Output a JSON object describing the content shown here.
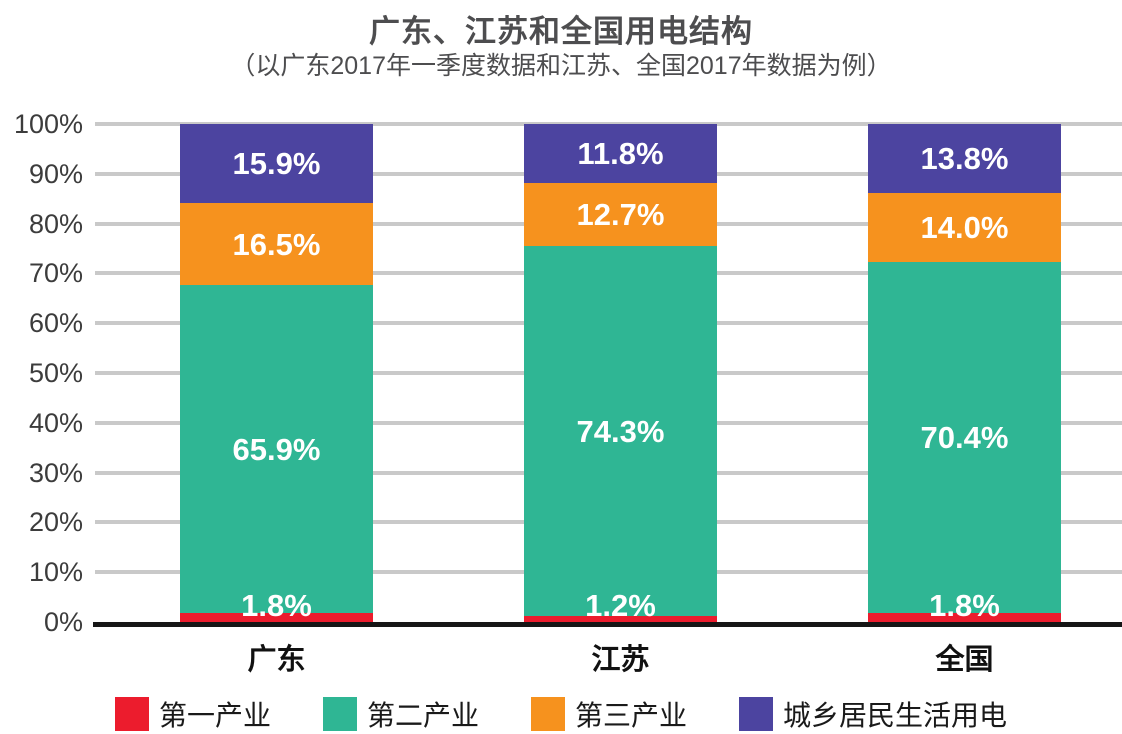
{
  "title": "广东、江苏和全国用电结构",
  "subtitle": "（以广东2017年一季度数据和江苏、全国2017年数据为例）",
  "chart_data": {
    "type": "bar",
    "stacked": true,
    "title": "广东、江苏和全国用电结构",
    "subtitle": "（以广东2017年一季度数据和江苏、全国2017年数据为例）",
    "categories": [
      "广东",
      "江苏",
      "全国"
    ],
    "series": [
      {
        "name": "第一产业",
        "color": "#ec1c2d",
        "values": [
          1.8,
          1.2,
          1.8
        ]
      },
      {
        "name": "第二产业",
        "color": "#2fb694",
        "values": [
          65.9,
          74.3,
          70.4
        ]
      },
      {
        "name": "第三产业",
        "color": "#f6921e",
        "values": [
          16.5,
          12.7,
          14.0
        ]
      },
      {
        "name": "城乡居民生活用电",
        "color": "#4c44a0",
        "values": [
          15.9,
          11.8,
          13.8
        ]
      }
    ],
    "value_labels": [
      [
        "1.8%",
        "65.9%",
        "16.5%",
        "15.9%"
      ],
      [
        "1.2%",
        "74.3%",
        "12.7%",
        "11.8%"
      ],
      [
        "1.8%",
        "70.4%",
        "14.0%",
        "13.8%"
      ]
    ],
    "y_ticks": [
      "100%",
      "90%",
      "80%",
      "70%",
      "60%",
      "50%",
      "40%",
      "30%",
      "20%",
      "10%",
      "0%"
    ],
    "ylim": [
      0,
      100
    ],
    "grid": true,
    "legend_position": "bottom",
    "colors": {
      "gridline": "#c9c9c9",
      "baseline": "#161616",
      "label_text": "#ffffff",
      "title_text": "#4d4d4f"
    }
  }
}
